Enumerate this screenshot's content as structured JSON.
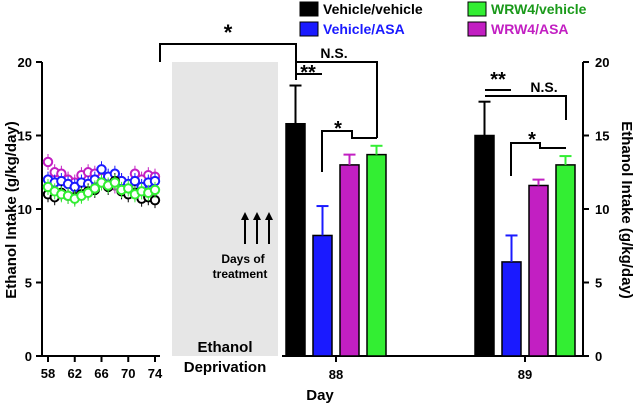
{
  "colors": {
    "vehicle_vehicle": "#000000",
    "vehicle_asa": "#1a1aff",
    "wrw4_vehicle": "#33ee33",
    "wrw4_asa": "#c21fc2",
    "deprivation_band": "#e6e6e6"
  },
  "chart_data": {
    "type": "bar",
    "title": "",
    "ylabel_left": "Ethanol Intake (g/kg/day)",
    "ylabel_right": "Ethanol Intake (g/kg/day)",
    "xlabel": "Day",
    "ylim": [
      0,
      20
    ],
    "yticks": [
      "0",
      "5",
      "10",
      "15",
      "20"
    ],
    "baseline": {
      "type": "line",
      "xticks": [
        "58",
        "62",
        "66",
        "70",
        "74"
      ],
      "days": [
        58,
        59,
        60,
        61,
        62,
        63,
        64,
        65,
        66,
        67,
        68,
        69,
        70,
        71,
        72,
        73,
        74
      ],
      "series": [
        {
          "name": "Vehicle/vehicle",
          "values": [
            11.0,
            10.8,
            11.1,
            10.9,
            10.8,
            11.0,
            11.2,
            11.3,
            11.8,
            11.5,
            11.9,
            11.2,
            11.0,
            11.1,
            10.7,
            10.8,
            10.6
          ]
        },
        {
          "name": "Vehicle/ASA",
          "values": [
            12.0,
            11.8,
            11.9,
            11.7,
            11.5,
            11.8,
            11.7,
            12.0,
            12.7,
            12.2,
            12.4,
            11.9,
            11.7,
            11.9,
            11.5,
            11.8,
            11.9
          ]
        },
        {
          "name": "WRW4/vehicle",
          "values": [
            11.5,
            11.2,
            11.0,
            10.9,
            10.7,
            10.9,
            11.1,
            11.4,
            11.8,
            11.6,
            11.8,
            11.3,
            11.4,
            11.0,
            11.2,
            11.1,
            11.3
          ]
        },
        {
          "name": "WRW4/ASA",
          "values": [
            13.2,
            12.5,
            12.4,
            12.0,
            11.8,
            12.3,
            12.5,
            12.4,
            12.1,
            11.9,
            11.6,
            11.9,
            11.5,
            12.4,
            12.0,
            12.3,
            12.2
          ]
        }
      ]
    },
    "bars": {
      "categories": [
        "88",
        "89"
      ],
      "series": [
        {
          "name": "Vehicle/vehicle",
          "values": [
            15.8,
            15.0
          ],
          "errors": [
            2.6,
            2.3
          ]
        },
        {
          "name": "Vehicle/ASA",
          "values": [
            8.2,
            6.4
          ],
          "errors": [
            2.0,
            1.8
          ]
        },
        {
          "name": "WRW4/ASA",
          "values": [
            13.0,
            11.6
          ],
          "errors": [
            0.7,
            0.4
          ]
        },
        {
          "name": "WRW4/vehicle",
          "values": [
            13.7,
            13.0
          ],
          "errors": [
            0.6,
            0.6
          ]
        }
      ]
    },
    "legend": [
      "Vehicle/vehicle",
      "Vehicle/ASA",
      "WRW4/vehicle",
      "WRW4/ASA"
    ],
    "annotations": {
      "deprivation_line1": "Ethanol",
      "deprivation_line2": "Deprivation",
      "treatment_line1": "Days of",
      "treatment_line2": "treatment",
      "sig_star": "*",
      "sig_double": "**",
      "sig_ns": "N.S."
    }
  }
}
